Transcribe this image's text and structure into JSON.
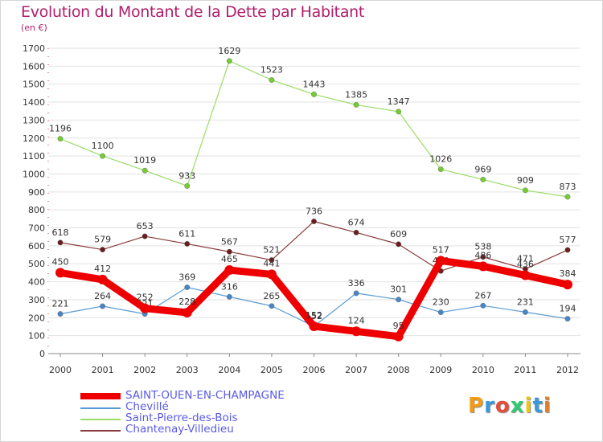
{
  "title": "Evolution du Montant de la Dette par Habitant",
  "subtitle": "(en €)",
  "logo_text": "Proxiti",
  "chart_data": {
    "type": "line",
    "title": "Evolution du Montant de la Dette par Habitant",
    "subtitle": "(en €)",
    "xlabel": "",
    "ylabel": "",
    "x": [
      "2000",
      "2001",
      "2002",
      "2003",
      "2004",
      "2005",
      "2006",
      "2007",
      "2008",
      "2009",
      "2010",
      "2011",
      "2012"
    ],
    "ylim": [
      0,
      1700
    ],
    "yticks": [
      0,
      100,
      200,
      300,
      400,
      500,
      600,
      700,
      800,
      900,
      1000,
      1100,
      1200,
      1300,
      1400,
      1500,
      1600,
      1700
    ],
    "grid": "horizontal",
    "legend_position": "bottom-left",
    "series": [
      {
        "name": "Chevillé",
        "color": "#5b9bd5",
        "marker": "#4a86c5",
        "values": [
          221,
          264,
          221,
          369,
          316,
          265,
          152,
          336,
          301,
          230,
          267,
          231,
          194
        ],
        "labels": [
          "221",
          "264",
          "221",
          "369",
          "316",
          "265",
          "152",
          "336",
          "301",
          "230",
          "267",
          "231",
          "194"
        ]
      },
      {
        "name": "Saint-Pierre-des-Bois",
        "color": "#99dd66",
        "marker": "#77cc33",
        "values": [
          1196,
          1100,
          1019,
          933,
          1629,
          1523,
          1443,
          1385,
          1347,
          1026,
          969,
          909,
          873
        ],
        "labels": [
          "1196",
          "1100",
          "1019",
          "933",
          "1629",
          "1523",
          "1443",
          "1385",
          "1347",
          "1026",
          "969",
          "909",
          "873"
        ]
      },
      {
        "name": "Chantenay-Villedieu",
        "color": "#8a3c3c",
        "marker": "#6b1e1e",
        "values": [
          618,
          579,
          653,
          611,
          567,
          521,
          736,
          674,
          609,
          460,
          538,
          471,
          577
        ],
        "labels": [
          "618",
          "579",
          "653",
          "611",
          "567",
          "521",
          "736",
          "674",
          "609",
          "460",
          "538",
          "471",
          "577"
        ]
      },
      {
        "name": "SAINT-OUEN-EN-CHAMPAGNE",
        "color": "#ee0000",
        "marker": "#ee0000",
        "values": [
          450,
          412,
          252,
          228,
          465,
          441,
          152,
          124,
          95,
          517,
          486,
          436,
          384
        ],
        "labels": [
          "450",
          "412",
          "252",
          "228",
          "465",
          "441",
          "152",
          "124",
          "95",
          "517",
          "486",
          "436",
          "384"
        ]
      }
    ],
    "legend_order": [
      "SAINT-OUEN-EN-CHAMPAGNE",
      "Chevillé",
      "Saint-Pierre-des-Bois",
      "Chantenay-Villedieu"
    ]
  }
}
